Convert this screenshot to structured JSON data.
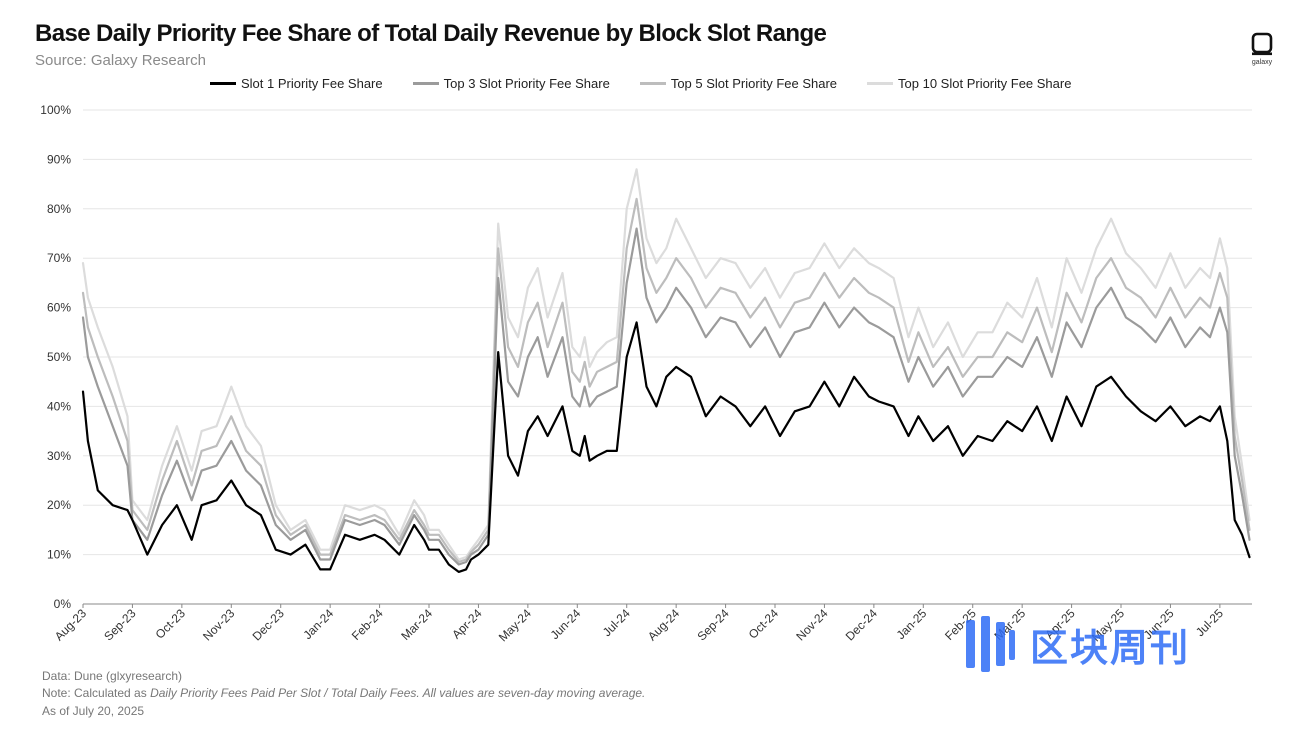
{
  "header": {
    "title": "Base Daily Priority Fee Share of Total Daily Revenue by Block Slot Range",
    "source": "Source: Galaxy Research",
    "logo_text": "galaxy"
  },
  "colors": {
    "slot1": "#000000",
    "top3": "#9b9b9b",
    "top5": "#bdbdbd",
    "top10": "#dcdcdc",
    "grid": "#e6e6e6",
    "watermark": "#2f6df6"
  },
  "chart_data": {
    "type": "line",
    "title": "Base Daily Priority Fee Share of Total Daily Revenue by Block Slot Range",
    "xlabel": "",
    "ylabel": "",
    "ylim": [
      0,
      100
    ],
    "y_ticks": [
      "0%",
      "10%",
      "20%",
      "30%",
      "40%",
      "50%",
      "60%",
      "70%",
      "80%",
      "90%",
      "100%"
    ],
    "x_ticks": [
      "Aug-23",
      "Sep-23",
      "Oct-23",
      "Nov-23",
      "Dec-23",
      "Jan-24",
      "Feb-24",
      "Mar-24",
      "Apr-24",
      "May-24",
      "Jun-24",
      "Jul-24",
      "Aug-24",
      "Sep-24",
      "Oct-24",
      "Nov-24",
      "Dec-24",
      "Jan-25",
      "Feb-25",
      "Mar-25",
      "Apr-25",
      "May-25",
      "Jun-25",
      "Jul-25"
    ],
    "x_unit": "months since Aug-23",
    "x_range": [
      0,
      23.65
    ],
    "grid": true,
    "legend_position": "top",
    "series": [
      {
        "name": "Slot 1 Priority Fee Share",
        "x": [
          0,
          0.1,
          0.3,
          0.6,
          0.9,
          1.0,
          1.3,
          1.6,
          1.9,
          2.2,
          2.4,
          2.7,
          3.0,
          3.3,
          3.6,
          3.9,
          4.2,
          4.5,
          4.8,
          5.0,
          5.3,
          5.6,
          5.9,
          6.1,
          6.4,
          6.7,
          6.9,
          7.0,
          7.2,
          7.4,
          7.6,
          7.75,
          7.85,
          8.0,
          8.2,
          8.4,
          8.6,
          8.8,
          9.0,
          9.2,
          9.4,
          9.7,
          9.9,
          10.05,
          10.15,
          10.25,
          10.4,
          10.6,
          10.8,
          11.0,
          11.2,
          11.4,
          11.6,
          11.8,
          12.0,
          12.3,
          12.6,
          12.9,
          13.2,
          13.5,
          13.8,
          14.1,
          14.4,
          14.7,
          15.0,
          15.3,
          15.6,
          15.9,
          16.1,
          16.4,
          16.7,
          16.9,
          17.2,
          17.5,
          17.8,
          18.1,
          18.4,
          18.7,
          19.0,
          19.3,
          19.6,
          19.9,
          20.2,
          20.5,
          20.8,
          21.1,
          21.4,
          21.7,
          22.0,
          22.3,
          22.6,
          22.8,
          23.0,
          23.15,
          23.3,
          23.45,
          23.6
        ],
        "values": [
          43,
          33,
          23,
          20,
          19,
          17,
          10,
          16,
          20,
          13,
          20,
          21,
          25,
          20,
          18,
          11,
          10,
          12,
          7,
          7,
          14,
          13,
          14,
          13,
          10,
          16,
          13,
          11,
          11,
          8,
          6.5,
          7,
          9,
          10,
          12,
          51,
          30,
          26,
          35,
          38,
          34,
          40,
          31,
          30,
          34,
          29,
          30,
          31,
          31,
          50,
          57,
          44,
          40,
          46,
          48,
          46,
          38,
          42,
          40,
          36,
          40,
          34,
          39,
          40,
          45,
          40,
          46,
          42,
          41,
          40,
          34,
          38,
          33,
          36,
          30,
          34,
          33,
          37,
          35,
          40,
          33,
          42,
          36,
          44,
          46,
          42,
          39,
          37,
          40,
          36,
          38,
          37,
          40,
          33,
          17,
          14,
          9.5
        ]
      },
      {
        "name": "Top 3 Slot Priority Fee Share",
        "x": [
          0,
          0.1,
          0.3,
          0.6,
          0.9,
          1.0,
          1.3,
          1.6,
          1.9,
          2.2,
          2.4,
          2.7,
          3.0,
          3.3,
          3.6,
          3.9,
          4.2,
          4.5,
          4.8,
          5.0,
          5.3,
          5.6,
          5.9,
          6.1,
          6.4,
          6.7,
          6.9,
          7.0,
          7.2,
          7.4,
          7.6,
          7.75,
          7.85,
          8.0,
          8.2,
          8.4,
          8.6,
          8.8,
          9.0,
          9.2,
          9.4,
          9.7,
          9.9,
          10.05,
          10.15,
          10.25,
          10.4,
          10.6,
          10.8,
          11.0,
          11.2,
          11.4,
          11.6,
          11.8,
          12.0,
          12.3,
          12.6,
          12.9,
          13.2,
          13.5,
          13.8,
          14.1,
          14.4,
          14.7,
          15.0,
          15.3,
          15.6,
          15.9,
          16.1,
          16.4,
          16.7,
          16.9,
          17.2,
          17.5,
          17.8,
          18.1,
          18.4,
          18.7,
          19.0,
          19.3,
          19.6,
          19.9,
          20.2,
          20.5,
          20.8,
          21.1,
          21.4,
          21.7,
          22.0,
          22.3,
          22.6,
          22.8,
          23.0,
          23.15,
          23.3,
          23.45,
          23.6
        ],
        "values": [
          58,
          50,
          44,
          36,
          28,
          17,
          13,
          22,
          29,
          21,
          27,
          28,
          33,
          27,
          24,
          16,
          13,
          15,
          9,
          9,
          17,
          16,
          17,
          16,
          12,
          18,
          15,
          13,
          13,
          10,
          8,
          8.5,
          10,
          11,
          14,
          66,
          45,
          42,
          50,
          54,
          46,
          54,
          42,
          40,
          44,
          40,
          42,
          43,
          44,
          65,
          76,
          62,
          57,
          60,
          64,
          60,
          54,
          58,
          57,
          52,
          56,
          50,
          55,
          56,
          61,
          56,
          60,
          57,
          56,
          54,
          45,
          50,
          44,
          48,
          42,
          46,
          46,
          50,
          48,
          54,
          46,
          57,
          52,
          60,
          64,
          58,
          56,
          53,
          58,
          52,
          56,
          54,
          60,
          55,
          30,
          22,
          13
        ]
      },
      {
        "name": "Top 5 Slot Priority Fee Share",
        "x": [
          0,
          0.1,
          0.3,
          0.6,
          0.9,
          1.0,
          1.3,
          1.6,
          1.9,
          2.2,
          2.4,
          2.7,
          3.0,
          3.3,
          3.6,
          3.9,
          4.2,
          4.5,
          4.8,
          5.0,
          5.3,
          5.6,
          5.9,
          6.1,
          6.4,
          6.7,
          6.9,
          7.0,
          7.2,
          7.4,
          7.6,
          7.75,
          7.85,
          8.0,
          8.2,
          8.4,
          8.6,
          8.8,
          9.0,
          9.2,
          9.4,
          9.7,
          9.9,
          10.05,
          10.15,
          10.25,
          10.4,
          10.6,
          10.8,
          11.0,
          11.2,
          11.4,
          11.6,
          11.8,
          12.0,
          12.3,
          12.6,
          12.9,
          13.2,
          13.5,
          13.8,
          14.1,
          14.4,
          14.7,
          15.0,
          15.3,
          15.6,
          15.9,
          16.1,
          16.4,
          16.7,
          16.9,
          17.2,
          17.5,
          17.8,
          18.1,
          18.4,
          18.7,
          19.0,
          19.3,
          19.6,
          19.9,
          20.2,
          20.5,
          20.8,
          21.1,
          21.4,
          21.7,
          22.0,
          22.3,
          22.6,
          22.8,
          23.0,
          23.15,
          23.3,
          23.45,
          23.6
        ],
        "values": [
          63,
          56,
          50,
          42,
          33,
          19,
          15,
          25,
          33,
          24,
          31,
          32,
          38,
          31,
          28,
          18,
          14,
          16,
          10,
          10,
          18,
          17,
          18,
          17,
          13,
          19,
          16,
          14,
          14,
          11,
          8.5,
          9,
          10.5,
          12,
          15,
          72,
          52,
          48,
          57,
          61,
          52,
          61,
          47,
          45,
          49,
          44,
          47,
          48,
          49,
          72,
          82,
          68,
          63,
          66,
          70,
          66,
          60,
          64,
          63,
          58,
          62,
          56,
          61,
          62,
          67,
          62,
          66,
          63,
          62,
          60,
          49,
          55,
          48,
          52,
          46,
          50,
          50,
          55,
          53,
          60,
          51,
          63,
          57,
          66,
          70,
          64,
          62,
          58,
          64,
          58,
          62,
          60,
          67,
          62,
          34,
          25,
          15
        ]
      },
      {
        "name": "Top 10 Slot Priority Fee Share",
        "x": [
          0,
          0.1,
          0.3,
          0.6,
          0.9,
          1.0,
          1.3,
          1.6,
          1.9,
          2.2,
          2.4,
          2.7,
          3.0,
          3.3,
          3.6,
          3.9,
          4.2,
          4.5,
          4.8,
          5.0,
          5.3,
          5.6,
          5.9,
          6.1,
          6.4,
          6.7,
          6.9,
          7.0,
          7.2,
          7.4,
          7.6,
          7.75,
          7.85,
          8.0,
          8.2,
          8.4,
          8.6,
          8.8,
          9.0,
          9.2,
          9.4,
          9.7,
          9.9,
          10.05,
          10.15,
          10.25,
          10.4,
          10.6,
          10.8,
          11.0,
          11.2,
          11.4,
          11.6,
          11.8,
          12.0,
          12.3,
          12.6,
          12.9,
          13.2,
          13.5,
          13.8,
          14.1,
          14.4,
          14.7,
          15.0,
          15.3,
          15.6,
          15.9,
          16.1,
          16.4,
          16.7,
          16.9,
          17.2,
          17.5,
          17.8,
          18.1,
          18.4,
          18.7,
          19.0,
          19.3,
          19.6,
          19.9,
          20.2,
          20.5,
          20.8,
          21.1,
          21.4,
          21.7,
          22.0,
          22.3,
          22.6,
          22.8,
          23.0,
          23.15,
          23.3,
          23.45,
          23.6
        ],
        "values": [
          69,
          62,
          56,
          48,
          38,
          21,
          17,
          28,
          36,
          27,
          35,
          36,
          44,
          36,
          32,
          20,
          15,
          17,
          11,
          11,
          20,
          19,
          20,
          19,
          14,
          21,
          18,
          15,
          15,
          12,
          9,
          9.5,
          11,
          13,
          16,
          77,
          58,
          54,
          64,
          68,
          58,
          67,
          52,
          50,
          54,
          48,
          51,
          53,
          54,
          80,
          88,
          74,
          69,
          72,
          78,
          72,
          66,
          70,
          69,
          64,
          68,
          62,
          67,
          68,
          73,
          68,
          72,
          69,
          68,
          66,
          54,
          60,
          52,
          57,
          50,
          55,
          55,
          61,
          58,
          66,
          56,
          70,
          63,
          72,
          78,
          71,
          68,
          64,
          71,
          64,
          68,
          66,
          74,
          68,
          38,
          28,
          17
        ]
      }
    ]
  },
  "footer": {
    "data_note": "Data: Dune (glxyresearch)",
    "note_prefix": "Note: Calculated as ",
    "note_formula": "Daily Priority Fees Paid Per Slot / Total Daily Fees. All values are seven-day moving average.",
    "as_of": "As of July 20, 2025"
  },
  "watermark": {
    "text": "区块周刊",
    "icon": "bars-logo-icon"
  }
}
